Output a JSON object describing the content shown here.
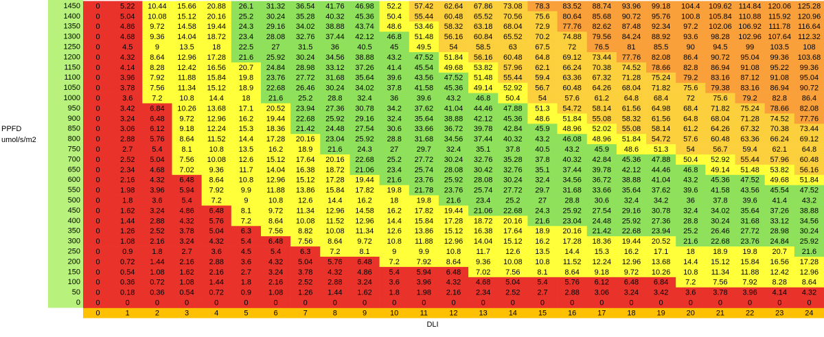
{
  "chart_data": {
    "type": "heatmap",
    "xlabel": "DLI",
    "ylabel": [
      "PPFD",
      "umol/s/m2"
    ],
    "rows": [
      1450,
      1400,
      1350,
      1300,
      1250,
      1200,
      1150,
      1100,
      1050,
      1000,
      950,
      900,
      850,
      800,
      750,
      700,
      650,
      600,
      550,
      500,
      450,
      400,
      350,
      300,
      250,
      200,
      150,
      100,
      50,
      0
    ],
    "columns": [
      0,
      1,
      2,
      3,
      4,
      5,
      6,
      7,
      8,
      9,
      10,
      11,
      12,
      13,
      14,
      15,
      16,
      17,
      18,
      19,
      20,
      21,
      22,
      23,
      24
    ],
    "values": [
      [
        0,
        5.22,
        10.44,
        15.66,
        20.88,
        26.1,
        31.32,
        36.54,
        41.76,
        46.98,
        52.2,
        57.42,
        62.64,
        67.86,
        73.08,
        78.3,
        83.52,
        88.74,
        93.96,
        99.18,
        104.4,
        109.62,
        114.84,
        120.06,
        125.28
      ],
      [
        0,
        5.04,
        10.08,
        15.12,
        20.16,
        25.2,
        30.24,
        35.28,
        40.32,
        45.36,
        50.4,
        55.44,
        60.48,
        65.52,
        70.56,
        75.6,
        80.64,
        85.68,
        90.72,
        95.76,
        100.8,
        105.84,
        110.88,
        115.92,
        120.96
      ],
      [
        0,
        4.86,
        9.72,
        14.58,
        19.44,
        24.3,
        29.16,
        34.02,
        38.88,
        43.74,
        48.6,
        53.46,
        58.32,
        63.18,
        68.04,
        72.9,
        77.76,
        82.62,
        87.48,
        92.34,
        97.2,
        102.06,
        106.92,
        111.78,
        116.64
      ],
      [
        0,
        4.68,
        9.36,
        14.04,
        18.72,
        23.4,
        28.08,
        32.76,
        37.44,
        42.12,
        46.8,
        51.48,
        56.16,
        60.84,
        65.52,
        70.2,
        74.88,
        79.56,
        84.24,
        88.92,
        93.6,
        98.28,
        102.96,
        107.64,
        112.32
      ],
      [
        0,
        4.5,
        9,
        13.5,
        18,
        22.5,
        27,
        31.5,
        36,
        40.5,
        45,
        49.5,
        54,
        58.5,
        63,
        67.5,
        72,
        76.5,
        81,
        85.5,
        90,
        94.5,
        99,
        103.5,
        108
      ],
      [
        0,
        4.32,
        8.64,
        12.96,
        17.28,
        21.6,
        25.92,
        30.24,
        34.56,
        38.88,
        43.2,
        47.52,
        51.84,
        56.16,
        60.48,
        64.8,
        69.12,
        73.44,
        77.76,
        82.08,
        86.4,
        90.72,
        95.04,
        99.36,
        103.68
      ],
      [
        0,
        4.14,
        8.28,
        12.42,
        16.56,
        20.7,
        24.84,
        28.98,
        33.12,
        37.26,
        41.4,
        45.54,
        49.68,
        53.82,
        57.96,
        62.1,
        66.24,
        70.38,
        74.52,
        78.66,
        82.8,
        86.94,
        91.08,
        95.22,
        99.36
      ],
      [
        0,
        3.96,
        7.92,
        11.88,
        15.84,
        19.8,
        23.76,
        27.72,
        31.68,
        35.64,
        39.6,
        43.56,
        47.52,
        51.48,
        55.44,
        59.4,
        63.36,
        67.32,
        71.28,
        75.24,
        79.2,
        83.16,
        87.12,
        91.08,
        95.04
      ],
      [
        0,
        3.78,
        7.56,
        11.34,
        15.12,
        18.9,
        22.68,
        26.46,
        30.24,
        34.02,
        37.8,
        41.58,
        45.36,
        49.14,
        52.92,
        56.7,
        60.48,
        64.26,
        68.04,
        71.82,
        75.6,
        79.38,
        83.16,
        86.94,
        90.72
      ],
      [
        0,
        3.6,
        7.2,
        10.8,
        14.4,
        18,
        21.6,
        25.2,
        28.8,
        32.4,
        36,
        39.6,
        43.2,
        46.8,
        50.4,
        54,
        57.6,
        61.2,
        64.8,
        68.4,
        72,
        75.6,
        79.2,
        82.8,
        86.4
      ],
      [
        0,
        3.42,
        6.84,
        10.26,
        13.68,
        17.1,
        20.52,
        23.94,
        27.36,
        30.78,
        34.2,
        37.62,
        41.04,
        44.46,
        47.88,
        51.3,
        54.72,
        58.14,
        61.56,
        64.98,
        68.4,
        71.82,
        75.24,
        78.66,
        82.08
      ],
      [
        0,
        3.24,
        6.48,
        9.72,
        12.96,
        16.2,
        19.44,
        22.68,
        25.92,
        29.16,
        32.4,
        35.64,
        38.88,
        42.12,
        45.36,
        48.6,
        51.84,
        55.08,
        58.32,
        61.56,
        64.8,
        68.04,
        71.28,
        74.52,
        77.76
      ],
      [
        0,
        3.06,
        6.12,
        9.18,
        12.24,
        15.3,
        18.36,
        21.42,
        24.48,
        27.54,
        30.6,
        33.66,
        36.72,
        39.78,
        42.84,
        45.9,
        48.96,
        52.02,
        55.08,
        58.14,
        61.2,
        64.26,
        67.32,
        70.38,
        73.44
      ],
      [
        0,
        2.88,
        5.76,
        8.64,
        11.52,
        14.4,
        17.28,
        20.16,
        23.04,
        25.92,
        28.8,
        31.68,
        34.56,
        37.44,
        40.32,
        43.2,
        46.08,
        48.96,
        51.84,
        54.72,
        57.6,
        60.48,
        63.36,
        66.24,
        69.12
      ],
      [
        0,
        2.7,
        5.4,
        8.1,
        10.8,
        13.5,
        16.2,
        18.9,
        21.6,
        24.3,
        27,
        29.7,
        32.4,
        35.1,
        37.8,
        40.5,
        43.2,
        45.9,
        48.6,
        51.3,
        54,
        56.7,
        59.4,
        62.1,
        64.8
      ],
      [
        0,
        2.52,
        5.04,
        7.56,
        10.08,
        12.6,
        15.12,
        17.64,
        20.16,
        22.68,
        25.2,
        27.72,
        30.24,
        32.76,
        35.28,
        37.8,
        40.32,
        42.84,
        45.36,
        47.88,
        50.4,
        52.92,
        55.44,
        57.96,
        60.48
      ],
      [
        0,
        2.34,
        4.68,
        7.02,
        9.36,
        11.7,
        14.04,
        16.38,
        18.72,
        21.06,
        23.4,
        25.74,
        28.08,
        30.42,
        32.76,
        35.1,
        37.44,
        39.78,
        42.12,
        44.46,
        46.8,
        49.14,
        51.48,
        53.82,
        56.16
      ],
      [
        0,
        2.16,
        4.32,
        6.48,
        8.64,
        10.8,
        12.96,
        15.12,
        17.28,
        19.44,
        21.6,
        23.76,
        25.92,
        28.08,
        30.24,
        32.4,
        34.56,
        36.72,
        38.88,
        41.04,
        43.2,
        45.36,
        47.52,
        49.68,
        51.84
      ],
      [
        0,
        1.98,
        3.96,
        5.94,
        7.92,
        9.9,
        11.88,
        13.86,
        15.84,
        17.82,
        19.8,
        21.78,
        23.76,
        25.74,
        27.72,
        29.7,
        31.68,
        33.66,
        35.64,
        37.62,
        39.6,
        41.58,
        43.56,
        45.54,
        47.52
      ],
      [
        0,
        1.8,
        3.6,
        5.4,
        7.2,
        9,
        10.8,
        12.6,
        14.4,
        16.2,
        18,
        19.8,
        21.6,
        23.4,
        25.2,
        27,
        28.8,
        30.6,
        32.4,
        34.2,
        36,
        37.8,
        39.6,
        41.4,
        43.2
      ],
      [
        0,
        1.62,
        3.24,
        4.86,
        6.48,
        8.1,
        9.72,
        11.34,
        12.96,
        14.58,
        16.2,
        17.82,
        19.44,
        21.06,
        22.68,
        24.3,
        25.92,
        27.54,
        29.16,
        30.78,
        32.4,
        34.02,
        35.64,
        37.26,
        38.88
      ],
      [
        0,
        1.44,
        2.88,
        4.32,
        5.76,
        7.2,
        8.64,
        10.08,
        11.52,
        12.96,
        14.4,
        15.84,
        17.28,
        18.72,
        20.16,
        21.6,
        23.04,
        24.48,
        25.92,
        27.36,
        28.8,
        30.24,
        31.68,
        33.12,
        34.56
      ],
      [
        0,
        1.26,
        2.52,
        3.78,
        5.04,
        6.3,
        7.56,
        8.82,
        10.08,
        11.34,
        12.6,
        13.86,
        15.12,
        16.38,
        17.64,
        18.9,
        20.16,
        21.42,
        22.68,
        23.94,
        25.2,
        26.46,
        27.72,
        28.98,
        30.24
      ],
      [
        0,
        1.08,
        2.16,
        3.24,
        4.32,
        5.4,
        6.48,
        7.56,
        8.64,
        9.72,
        10.8,
        11.88,
        12.96,
        14.04,
        15.12,
        16.2,
        17.28,
        18.36,
        19.44,
        20.52,
        21.6,
        22.68,
        23.76,
        24.84,
        25.92
      ],
      [
        0,
        0.9,
        1.8,
        2.7,
        3.6,
        4.5,
        5.4,
        6.3,
        7.2,
        8.1,
        9,
        9.9,
        10.8,
        11.7,
        12.6,
        13.5,
        14.4,
        15.3,
        16.2,
        17.1,
        18,
        18.9,
        19.8,
        20.7,
        21.6
      ],
      [
        0,
        0.72,
        1.44,
        2.16,
        2.88,
        3.6,
        4.32,
        5.04,
        5.76,
        6.48,
        7.2,
        7.92,
        8.64,
        9.36,
        10.08,
        10.8,
        11.52,
        12.24,
        12.96,
        13.68,
        14.4,
        15.12,
        15.84,
        16.56,
        17.28
      ],
      [
        0,
        0.54,
        1.08,
        1.62,
        2.16,
        2.7,
        3.24,
        3.78,
        4.32,
        4.86,
        5.4,
        5.94,
        6.48,
        7.02,
        7.56,
        8.1,
        8.64,
        9.18,
        9.72,
        10.26,
        10.8,
        11.34,
        11.88,
        12.42,
        12.96
      ],
      [
        0,
        0.36,
        0.72,
        1.08,
        1.44,
        1.8,
        2.16,
        2.52,
        2.88,
        3.24,
        3.6,
        3.96,
        4.32,
        4.68,
        5.04,
        5.4,
        5.76,
        6.12,
        6.48,
        6.84,
        7.2,
        7.56,
        7.92,
        8.28,
        8.64
      ],
      [
        0,
        0.18,
        0.36,
        0.54,
        0.72,
        0.9,
        1.08,
        1.26,
        1.44,
        1.62,
        1.8,
        1.98,
        2.16,
        2.34,
        2.52,
        2.7,
        2.88,
        3.06,
        3.24,
        3.42,
        3.6,
        3.78,
        3.96,
        4.14,
        4.32
      ],
      [
        0,
        0,
        0,
        0,
        0,
        0,
        0,
        0,
        0,
        0,
        0,
        0,
        0,
        0,
        0,
        0,
        0,
        0,
        0,
        0,
        0,
        0,
        0,
        0,
        0
      ]
    ],
    "color_scale": [
      {
        "below": 7,
        "color": "#e8322a"
      },
      {
        "below": 21,
        "color": "#ffff3a"
      },
      {
        "below": 48,
        "color": "#8fe05a"
      },
      {
        "below": 54,
        "color": "#ffff3a"
      },
      {
        "below": 76,
        "color": "#fcd03c"
      },
      {
        "below": null,
        "color": "#f9a03a"
      }
    ],
    "row_header_color": "#b8f27c",
    "column_header_color": "#ffc000"
  }
}
